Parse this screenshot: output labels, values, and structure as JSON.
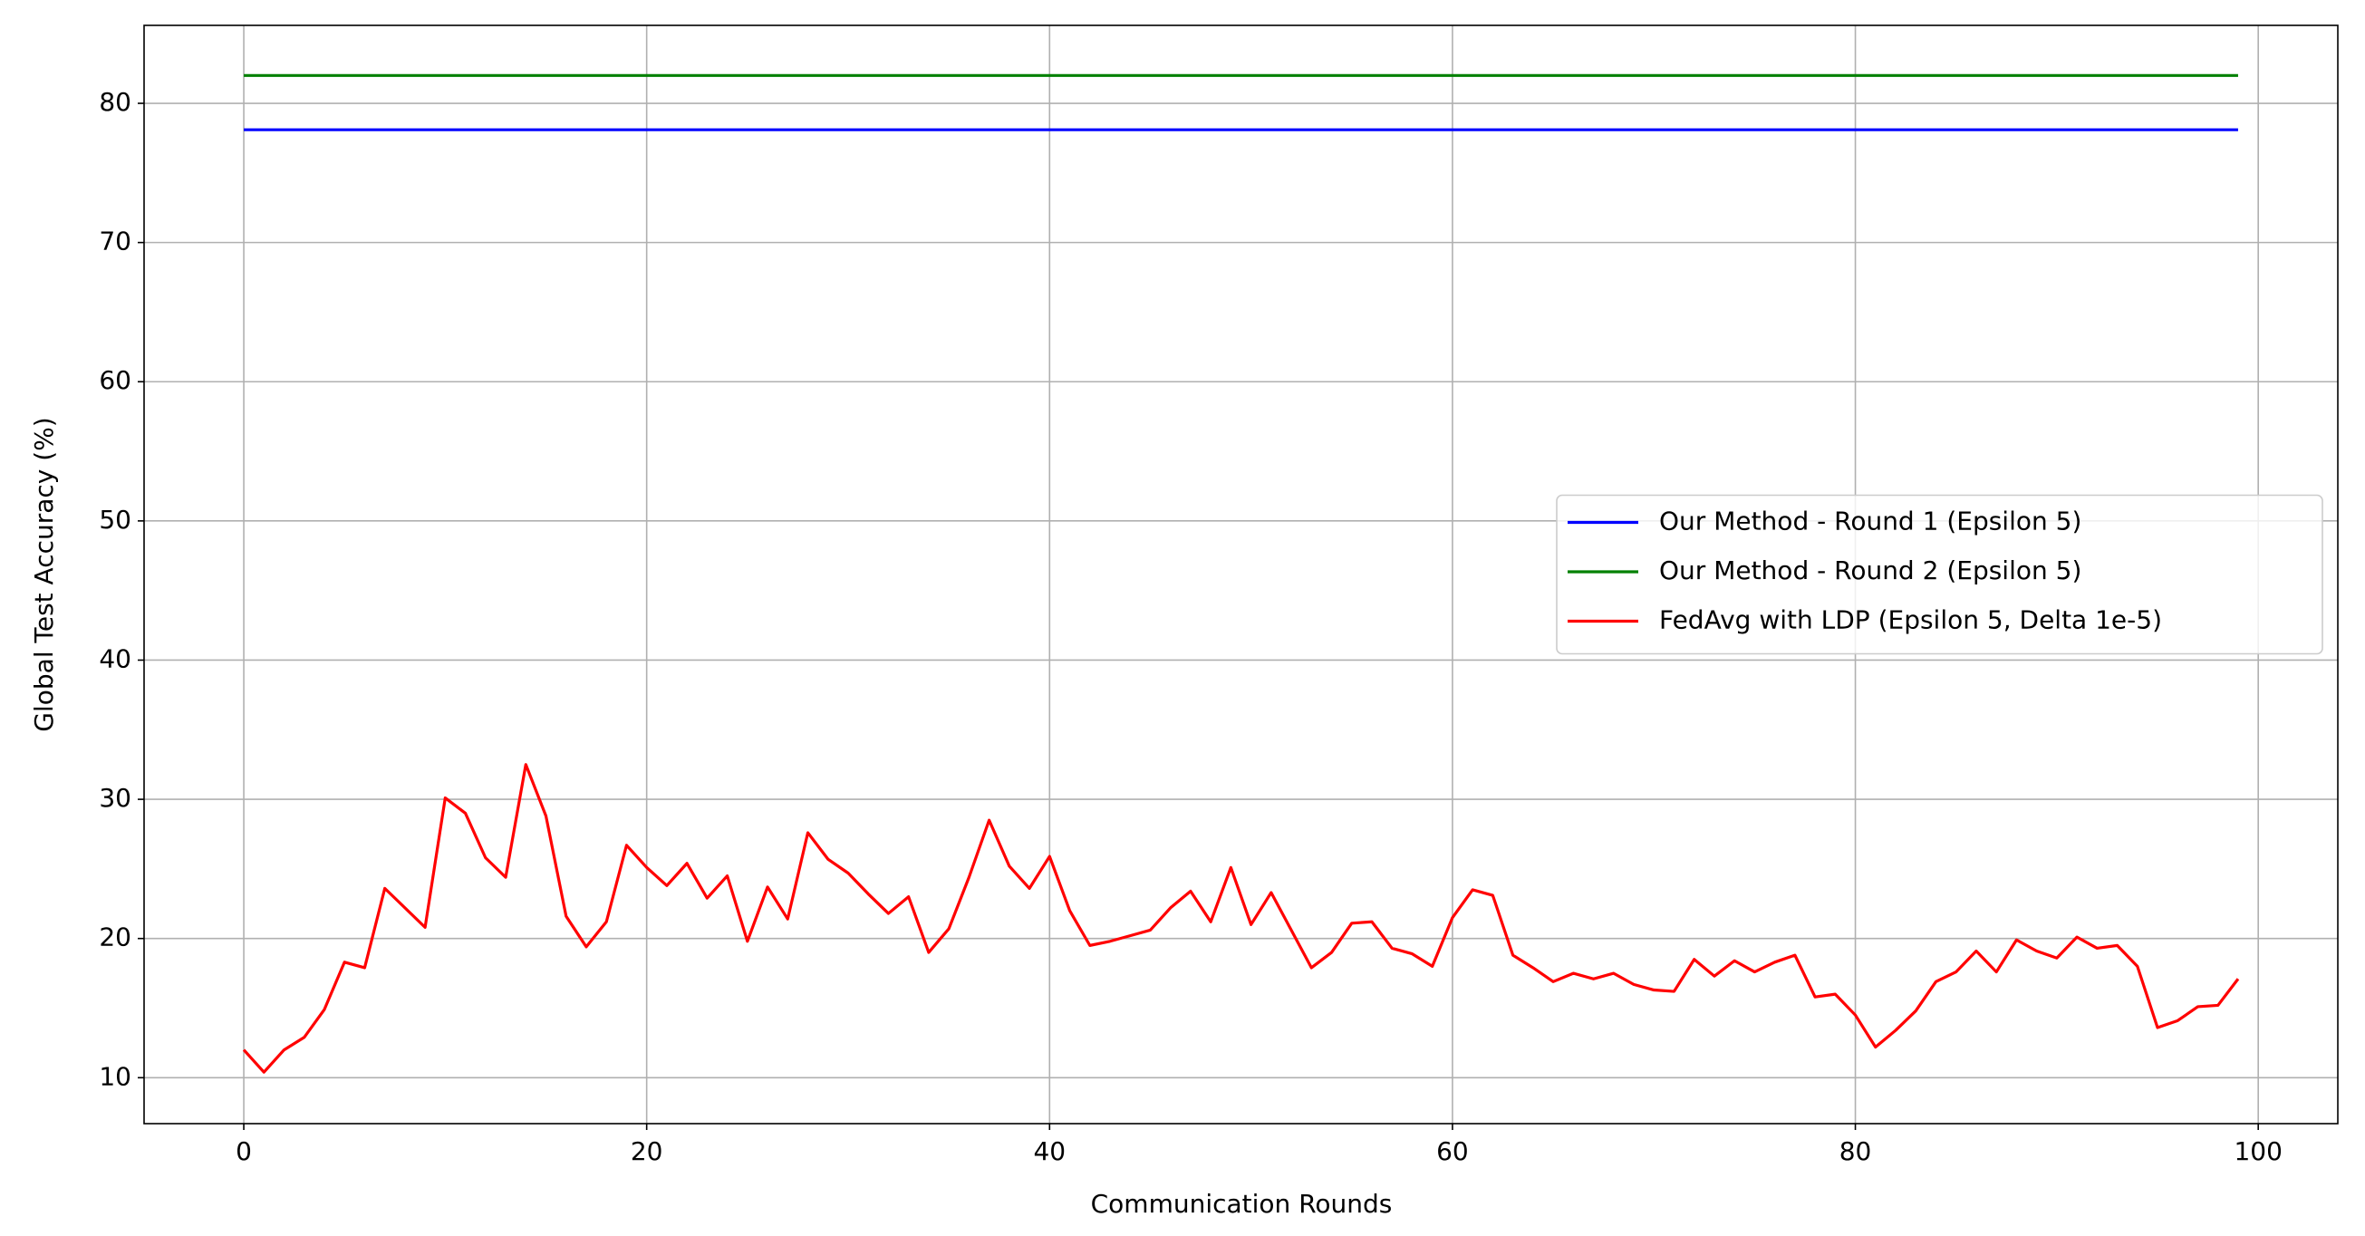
{
  "chart_data": {
    "type": "line",
    "xlabel": "Communication Rounds",
    "ylabel": "Global Test Accuracy (%)",
    "xlim": [
      -4.95,
      103.95
    ],
    "xticks": [
      0,
      20,
      40,
      60,
      80,
      100
    ],
    "ylim": [
      6.7,
      85.6
    ],
    "yticks": [
      10,
      20,
      30,
      40,
      50,
      60,
      70,
      80
    ],
    "grid": true,
    "legend": "center right",
    "series": [
      {
        "name": "Our Method - Round 1 (Epsilon 5)",
        "color": "#0000ff",
        "x": [
          0,
          99
        ],
        "values": [
          78.1,
          78.1
        ]
      },
      {
        "name": "Our Method - Round 2 (Epsilon 5)",
        "color": "#008000",
        "x": [
          0,
          99
        ],
        "values": [
          82.0,
          82.0
        ]
      },
      {
        "name": "FedAvg with LDP (Epsilon 5, Delta 1e-5)",
        "color": "#ff0000",
        "x": [
          0,
          1,
          2,
          3,
          4,
          5,
          6,
          7,
          8,
          9,
          10,
          11,
          12,
          13,
          14,
          15,
          16,
          17,
          18,
          19,
          20,
          21,
          22,
          23,
          24,
          25,
          26,
          27,
          28,
          29,
          30,
          31,
          32,
          33,
          34,
          35,
          36,
          37,
          38,
          39,
          40,
          41,
          42,
          43,
          44,
          45,
          46,
          47,
          48,
          49,
          50,
          51,
          52,
          53,
          54,
          55,
          56,
          57,
          58,
          59,
          60,
          61,
          62,
          63,
          64,
          65,
          66,
          67,
          68,
          69,
          70,
          71,
          72,
          73,
          74,
          75,
          76,
          77,
          78,
          79,
          80,
          81,
          82,
          83,
          84,
          85,
          86,
          87,
          88,
          89,
          90,
          91,
          92,
          93,
          94,
          95,
          96,
          97,
          98,
          99
        ],
        "values": [
          12.0,
          10.4,
          12.0,
          12.9,
          14.9,
          18.3,
          17.9,
          23.6,
          22.2,
          20.8,
          30.1,
          29.0,
          25.8,
          24.4,
          32.5,
          28.8,
          21.6,
          19.4,
          21.2,
          26.7,
          25.1,
          23.8,
          25.4,
          22.9,
          24.5,
          19.8,
          23.7,
          21.4,
          27.6,
          25.7,
          24.7,
          23.2,
          21.8,
          23.0,
          19.0,
          20.7,
          24.4,
          28.5,
          25.2,
          23.6,
          25.9,
          22.0,
          19.5,
          19.8,
          20.2,
          20.6,
          22.2,
          23.4,
          21.2,
          25.1,
          21.0,
          23.3,
          20.6,
          17.9,
          19.0,
          21.1,
          21.2,
          19.3,
          18.9,
          18.0,
          21.5,
          23.5,
          23.1,
          18.8,
          17.9,
          16.9,
          17.5,
          17.1,
          17.5,
          16.7,
          16.3,
          16.2,
          18.5,
          17.3,
          18.4,
          17.6,
          18.3,
          18.8,
          15.8,
          16.0,
          14.5,
          12.2,
          13.4,
          14.8,
          16.9,
          17.6,
          19.1,
          17.6,
          19.9,
          19.1,
          18.6,
          20.1,
          19.3,
          19.5,
          18.0,
          13.6,
          14.1,
          15.1,
          15.2,
          17.1
        ]
      }
    ]
  }
}
